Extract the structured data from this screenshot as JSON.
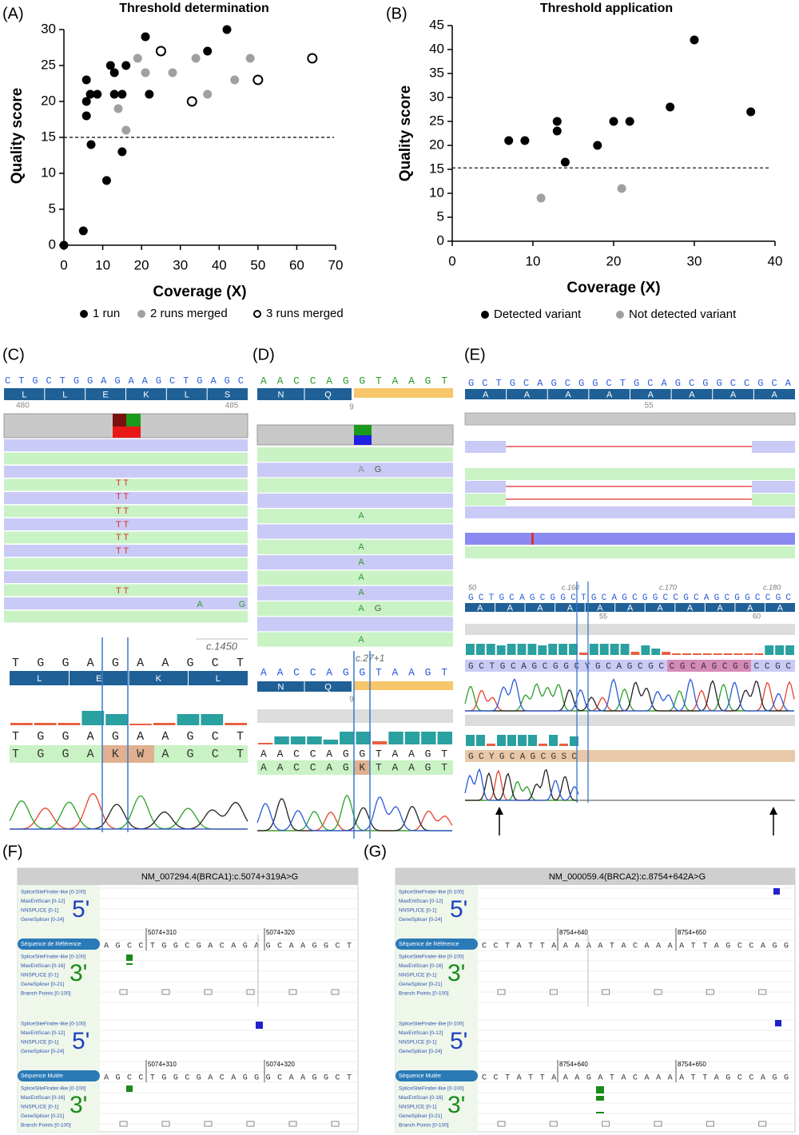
{
  "chart_data": [
    {
      "type": "scatter",
      "panel_label": "(A)",
      "title": "Threshold determination",
      "x_label": "Coverage (X)",
      "y_label": "Quality score",
      "xlim": [
        0,
        70
      ],
      "ylim": [
        0,
        30
      ],
      "xticks": [
        0,
        10,
        20,
        30,
        40,
        50,
        60,
        70
      ],
      "yticks": [
        0,
        5,
        10,
        15,
        20,
        25,
        30
      ],
      "threshold": 15,
      "series": [
        {
          "name": "1 run",
          "color": "#000000",
          "marker": "filled",
          "x": [
            0,
            5,
            5.8,
            5.8,
            5.8,
            6.8,
            7,
            8.6,
            11,
            12,
            13,
            13,
            15,
            15,
            16,
            21,
            22,
            37,
            42
          ],
          "values": [
            0,
            2,
            23,
            20,
            18,
            21,
            14,
            21,
            9,
            25,
            24,
            21,
            21,
            13,
            25,
            29,
            21,
            27,
            30
          ]
        },
        {
          "name": "2 runs merged",
          "color": "#a0a0a0",
          "marker": "filled",
          "x": [
            19,
            14,
            16,
            21,
            28,
            34,
            37,
            44,
            48
          ],
          "values": [
            26,
            19,
            16,
            24,
            24,
            26,
            21,
            23,
            26
          ]
        },
        {
          "name": "3 runs merged",
          "color": "#000000",
          "marker": "open",
          "x": [
            25,
            33,
            50,
            64
          ],
          "values": [
            27,
            20,
            23,
            26
          ]
        }
      ]
    },
    {
      "type": "scatter",
      "panel_label": "(B)",
      "title": "Threshold application",
      "x_label": "Coverage (X)",
      "y_label": "Quality score",
      "xlim": [
        0,
        40
      ],
      "ylim": [
        0,
        45
      ],
      "xticks": [
        0,
        10,
        20,
        30,
        40
      ],
      "yticks": [
        0,
        5,
        10,
        15,
        20,
        25,
        30,
        35,
        40,
        45
      ],
      "threshold": 15.3,
      "series": [
        {
          "name": "Detected variant",
          "color": "#000000",
          "marker": "filled",
          "x": [
            7,
            9,
            13,
            13,
            14,
            18,
            20,
            22,
            27,
            30,
            37
          ],
          "values": [
            21,
            21,
            25,
            23,
            16.5,
            20,
            25,
            25,
            28,
            42,
            27
          ]
        },
        {
          "name": "Not detected variant",
          "color": "#a0a0a0",
          "marker": "filled",
          "x": [
            11,
            21
          ],
          "values": [
            9,
            11
          ]
        }
      ]
    }
  ],
  "panel_c": {
    "label": "(C)",
    "top_sequence": "CTGCTGGAGAAGCTGAGC",
    "top_aa": [
      "L",
      "L",
      "E",
      "K",
      "L",
      "S"
    ],
    "positions": [
      "480",
      "485"
    ],
    "read_calls": [
      "T T",
      "T T",
      "T T",
      "T T",
      "T T",
      "T T",
      "T T",
      "A",
      "G"
    ],
    "sanger_position": "c.1450",
    "sanger_aa": [
      "L",
      "E",
      "K",
      "L"
    ],
    "sanger_reference": "TGGAGAAGCT",
    "sanger_sample": "TGGAKWAGCT",
    "sanger_top": "TGGAGAAGCT"
  },
  "panel_d": {
    "label": "(D)",
    "top_sequence": "AACCAGGTAAGT",
    "top_aa": [
      "N",
      "Q"
    ],
    "position": "9",
    "read_calls": [
      "A",
      "G",
      "A",
      "A",
      "A",
      "A",
      "A",
      "A",
      "G",
      "A"
    ],
    "sanger_position": "c.27+1",
    "sanger_top": "AACCAGGTAAGT",
    "sanger_aa": [
      "N",
      "Q"
    ],
    "sanger_number": "9",
    "sanger_reference": "AACCAGGTAAGT",
    "sanger_sample": "AACCAGKTAAGT"
  },
  "panel_e": {
    "label": "(E)",
    "top_sequence": "GCTGCAGCGGCTGCAGCGGCCGCA",
    "top_aa": [
      "A",
      "A",
      "A",
      "A",
      "A",
      "A",
      "A",
      "A"
    ],
    "position": "55",
    "sanger_positions": [
      "50",
      "c.160",
      "c.170",
      "c.180"
    ],
    "sanger_top": "GCTGCAGCGGCTGCAGCGGCCGCAGCGGCCGC",
    "sanger_aa": [
      "A",
      "A",
      "A",
      "A",
      "A",
      "A",
      "A",
      "A",
      "A",
      "A",
      "A"
    ],
    "sanger_numbers": [
      "55",
      "60"
    ],
    "sample_1": "GCTGCAGCGGCYGCAGCGCCGCAGCGGCCGC",
    "sample_2": "GCYGCAGCGSC"
  },
  "panel_f": {
    "label": "(F)",
    "header": "NM_007294.4(BRCA1):c.5074+319A>G",
    "blocks": [
      {
        "scores_5": [
          "SpliceSiteFinder-like [0-100]",
          "MaxEntScan [0-12]",
          "NNSPLICE [0-1]",
          "GeneSplicer [0-24]"
        ],
        "prime_5": "5'",
        "sequence_label": "Séquence de Référence",
        "sequence": "AGCCTGGCGACAGAGCAAGGCT",
        "positions": [
          "5074+310",
          "5074+320"
        ],
        "scores_3": [
          "SpliceSiteFinder-like [0-100]",
          "MaxEntScan [0-16]",
          "NNSPLICE [0-1]",
          "GeneSplicer [0-21]"
        ],
        "prime_3": "3'",
        "branch": "Branch Points [0-100]"
      },
      {
        "scores_5": [
          "SpliceSiteFinder-like [0-100]",
          "MaxEntScan [0-12]",
          "NNSPLICE [0-1]",
          "GeneSplicer [0-24]"
        ],
        "prime_5": "5'",
        "sequence_label": "Séquence Mutée",
        "sequence": "AGCCTGGCGACAGGGCAAGGCT",
        "positions": [
          "5074+310",
          "5074+320"
        ],
        "scores_3": [
          "SpliceSiteFinder-like [0-100]",
          "MaxEntScan [0-16]",
          "NNSPLICE [0-1]",
          "GeneSplicer [0-21]"
        ],
        "prime_3": "3'",
        "branch": "Branch Points [0-100]"
      }
    ]
  },
  "panel_g": {
    "label": "(G)",
    "header": "NM_000059.4(BRCA2):c.8754+642A>G",
    "blocks": [
      {
        "scores_5": [
          "SpliceSiteFinder-like [0-100]",
          "MaxEntScan [0-12]",
          "NNSPLICE [0-1]",
          "GeneSplicer [0-24]"
        ],
        "prime_5": "5'",
        "sequence_label": "Séquence de Référence",
        "sequence": "CCTATTAAAAATACAAAATTAGCCAGG",
        "positions": [
          "8754+640",
          "8754+650"
        ],
        "scores_3": [
          "SpliceSiteFinder-like [0-100]",
          "MaxEntScan [0-16]",
          "NNSPLICE [0-1]",
          "GeneSplicer [0-21]"
        ],
        "prime_3": "3'",
        "branch": "Branch Points [0-100]"
      },
      {
        "scores_5": [
          "SpliceSiteFinder-like [0-100]",
          "MaxEntScan [0-12]",
          "NNSPLICE [0-1]",
          "GeneSplicer [0-24]"
        ],
        "prime_5": "5'",
        "sequence_label": "Séquence Mutée",
        "sequence": "CCTATTAAAGATACAAAATTAGCCAGG",
        "positions": [
          "8754+640",
          "8754+650"
        ],
        "scores_3": [
          "SpliceSiteFinder-like [0-100]",
          "MaxEntScan [0-16]",
          "NNSPLICE [0-1]",
          "GeneSplicer [0-21]"
        ],
        "prime_3": "3'",
        "branch": "Branch Points [0-100]"
      }
    ]
  }
}
